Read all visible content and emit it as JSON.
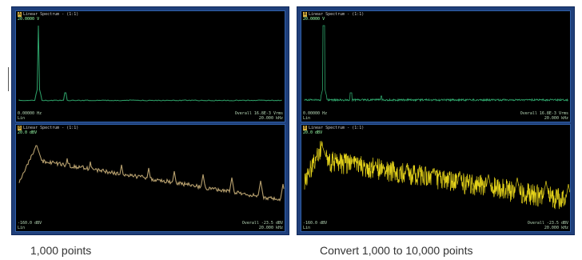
{
  "colors": {
    "frame": "#1f3f7a",
    "panel_bg": "#000000",
    "spectrum_green": "#2ea36a",
    "spectrum_tan": "#b7a06e",
    "spectrum_yellow": "#e4d21a"
  },
  "screens": [
    {
      "top": {
        "header": "Linear Spectrum - (1:1)",
        "subheader": "20.0000 V",
        "footer_left": "0.00000 Hz\nLin",
        "footer_right": "Overall 16.8E-3 Vrms\n20.000 kHz"
      },
      "bottom": {
        "header": "Linear Spectrum - (1:1)",
        "subheader": "20.0 dBV",
        "footer_left": "-160.0 dBV\nLin",
        "footer_right": "Overall -23.5 dBV\n20.000 kHz"
      }
    },
    {
      "top": {
        "header": "Linear Spectrum - (1:1)",
        "subheader": "20.0000 V",
        "footer_left": "0.00000 Hz\nLin",
        "footer_right": "Overall 16.8E-3 Vrms\n20.000 kHz"
      },
      "bottom": {
        "header": "Linear Spectrum - (1:1)",
        "subheader": "20.0 dBV",
        "footer_left": "-160.0 dBV\nLin",
        "footer_right": "Overall -23.5 dBV\n20.000 kHz"
      }
    }
  ],
  "captions": {
    "left": "1,000 points",
    "right": "Convert 1,000 to 10,000 points"
  }
}
